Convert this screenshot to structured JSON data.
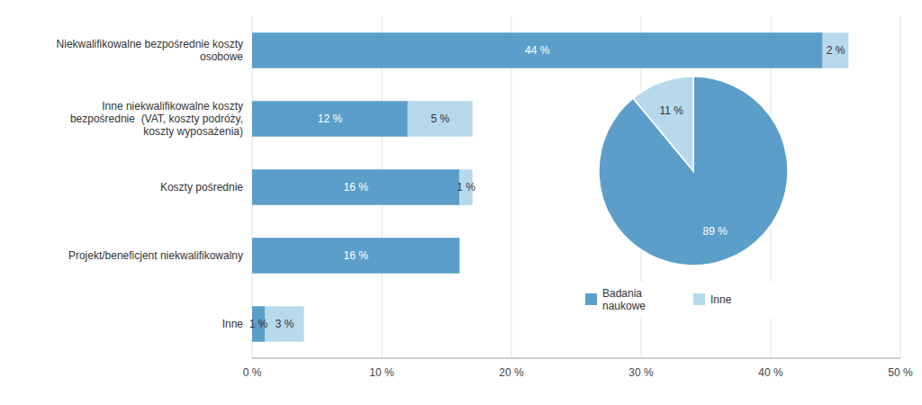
{
  "chart_data": [
    {
      "type": "bar",
      "orientation": "horizontal",
      "stacked": true,
      "categories": [
        "Inne",
        "Projekt/beneficjent niekwalifikowalny",
        "Koszty pośrednie",
        "Inne niekwalifikowalne koszty\nbezpośrednie  (VAT, koszty podróży,\nkoszty wyposażenia)",
        "Niekwalifikowalne bezpośrednie koszty\nosobowe"
      ],
      "series": [
        {
          "color": "#5B9EC9",
          "values": [
            1,
            16,
            16,
            12,
            44
          ],
          "value_labels": [
            "1 %",
            "16 %",
            "16 %",
            "12 %",
            "44 %"
          ]
        },
        {
          "color": "#B8D9EC",
          "values": [
            3,
            0,
            1,
            5,
            2
          ],
          "value_labels": [
            "3 %",
            null,
            "1 %",
            "5 %",
            "2 %"
          ]
        }
      ],
      "xlim": [
        0,
        50
      ],
      "xticks": [
        {
          "value": 0,
          "label": "0 %"
        },
        {
          "value": 10,
          "label": "10 %"
        },
        {
          "value": 20,
          "label": "20 %"
        },
        {
          "value": 30,
          "label": "30 %"
        },
        {
          "value": 40,
          "label": "40 %"
        },
        {
          "value": 50,
          "label": "50 %"
        }
      ],
      "grid": true,
      "data_labels": true
    },
    {
      "type": "pie",
      "categories": [
        "Badania\nnaukowe",
        "Inne"
      ],
      "values": [
        89,
        11
      ],
      "value_labels": [
        "89 %",
        "11 %"
      ],
      "colors": [
        "#5B9EC9",
        "#B8D9EC"
      ],
      "legend": "bottom",
      "data_labels": true
    }
  ]
}
